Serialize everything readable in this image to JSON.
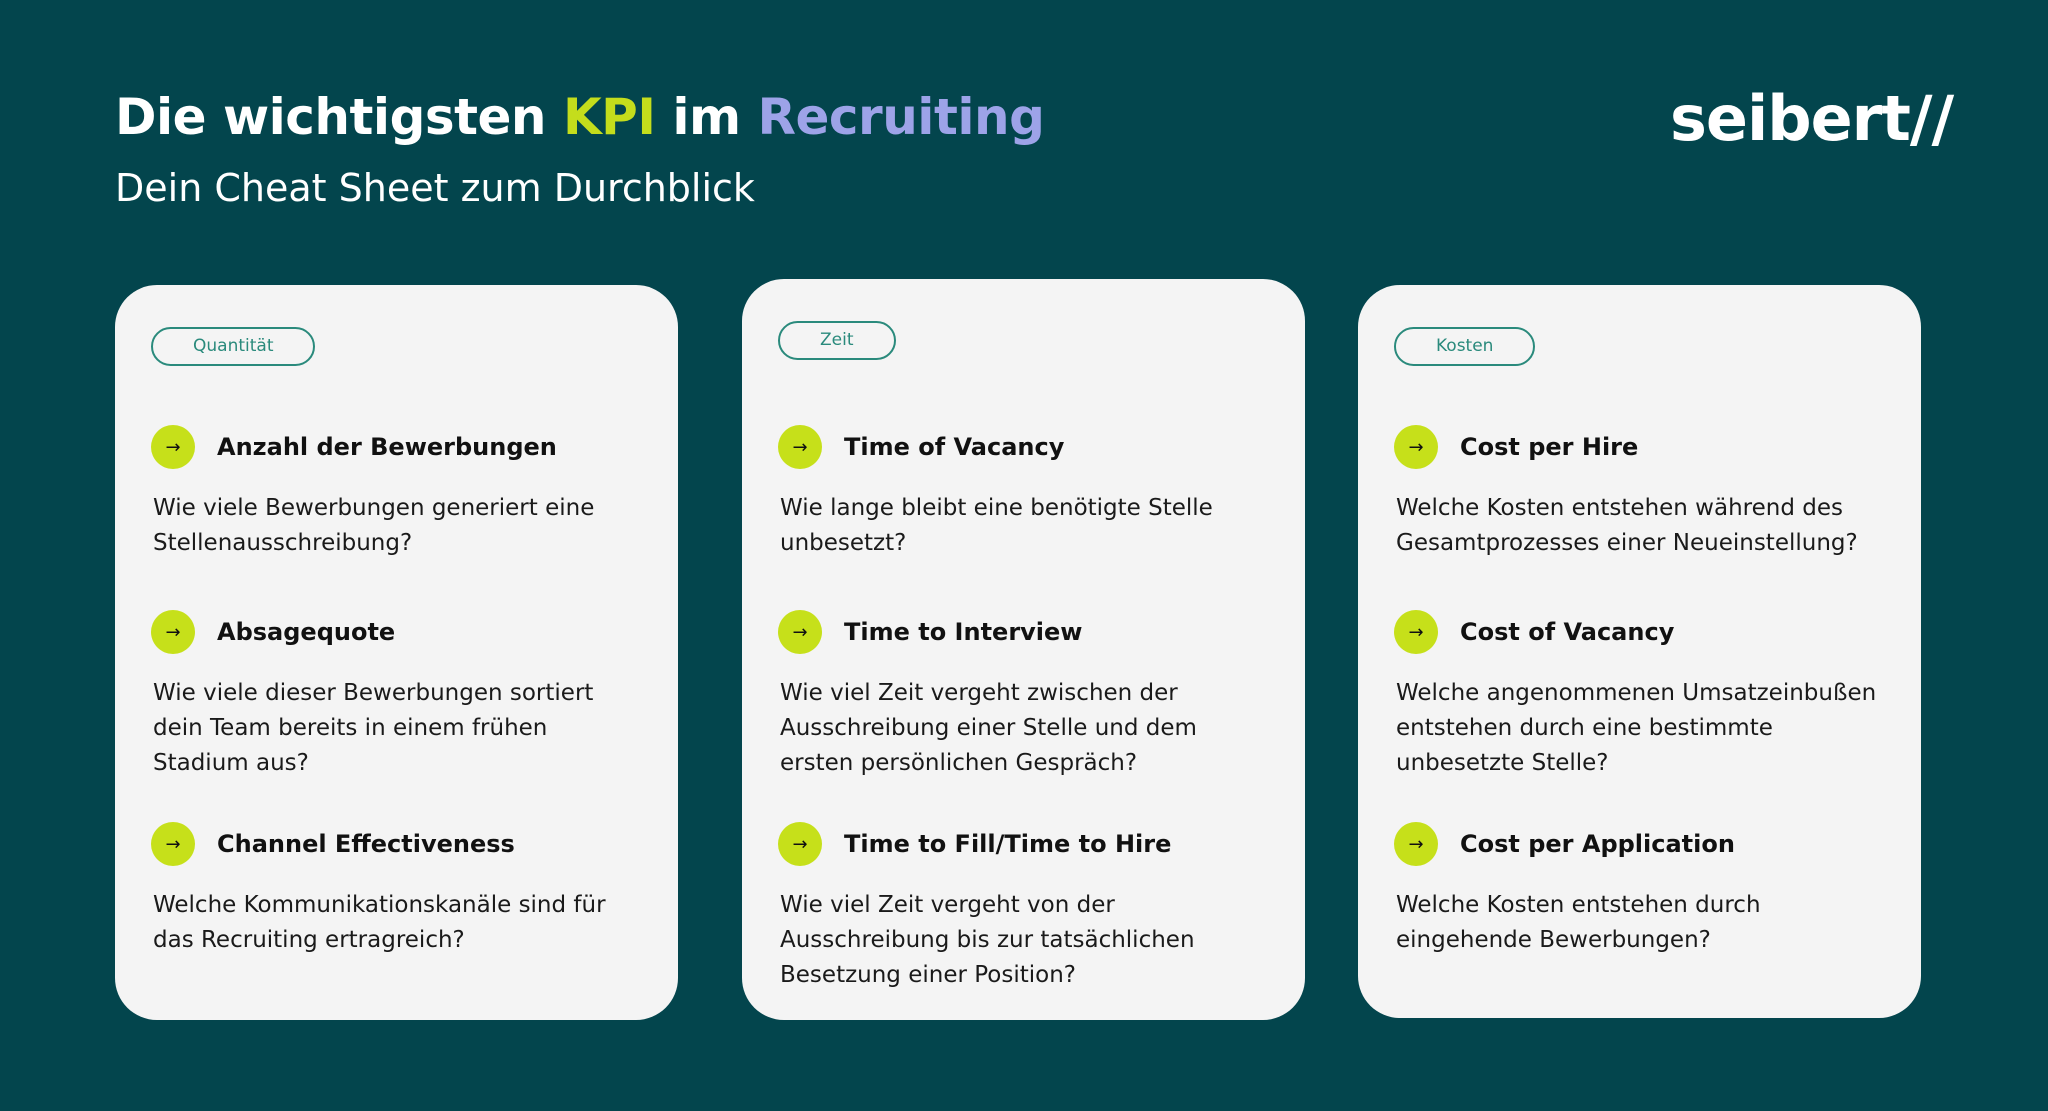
{
  "header": {
    "title_part1": "Die wichtigsten ",
    "title_kpi": "KPI",
    "title_part2": " im ",
    "title_recruiting": "Recruiting",
    "subtitle": "Dein Cheat Sheet zum Durchblick",
    "logo": "seibert//"
  },
  "colors": {
    "background": "#03454d",
    "lime": "#c6e01a",
    "purple": "#9da3e8",
    "card": "#f4f4f4",
    "teal": "#2a8a7c"
  },
  "cards": [
    {
      "tag": "Quantität",
      "items": [
        {
          "icon": "arrow-right-icon",
          "title": "Anzahl der Bewerbungen",
          "desc": "Wie viele Bewerbungen generiert eine Stellenausschreibung?"
        },
        {
          "icon": "arrow-right-icon",
          "title": "Absagequote",
          "desc": "Wie viele dieser Bewerbungen sortiert dein Team bereits in einem frühen Stadium aus?"
        },
        {
          "icon": "arrow-right-icon",
          "title": "Channel Effectiveness",
          "desc": "Welche Kommunikationskanäle sind für das Recruiting ertragreich?"
        }
      ]
    },
    {
      "tag": "Zeit",
      "items": [
        {
          "icon": "arrow-right-icon",
          "title": "Time of Vacancy",
          "desc": "Wie lange bleibt eine benötigte Stelle unbesetzt?"
        },
        {
          "icon": "arrow-right-icon",
          "title": "Time to Interview",
          "desc": "Wie viel Zeit vergeht zwischen der Ausschreibung einer Stelle und dem ersten persönlichen Gespräch?"
        },
        {
          "icon": "arrow-right-icon",
          "title": "Time to Fill/Time to Hire",
          "desc": "Wie viel Zeit vergeht von der Ausschreibung bis zur tatsächlichen Besetzung einer Position?"
        }
      ]
    },
    {
      "tag": "Kosten",
      "items": [
        {
          "icon": "arrow-right-icon",
          "title": "Cost per Hire",
          "desc": "Welche Kosten entstehen während des Gesamtprozesses einer Neueinstellung?"
        },
        {
          "icon": "arrow-right-icon",
          "title": "Cost of Vacancy",
          "desc": "Welche angenommenen Umsatzeinbußen entstehen durch eine bestimmte unbesetzte Stelle?"
        },
        {
          "icon": "arrow-right-icon",
          "title": "Cost per Application",
          "desc": "Welche Kosten entstehen durch eingehende Bewerbungen?"
        }
      ]
    }
  ]
}
